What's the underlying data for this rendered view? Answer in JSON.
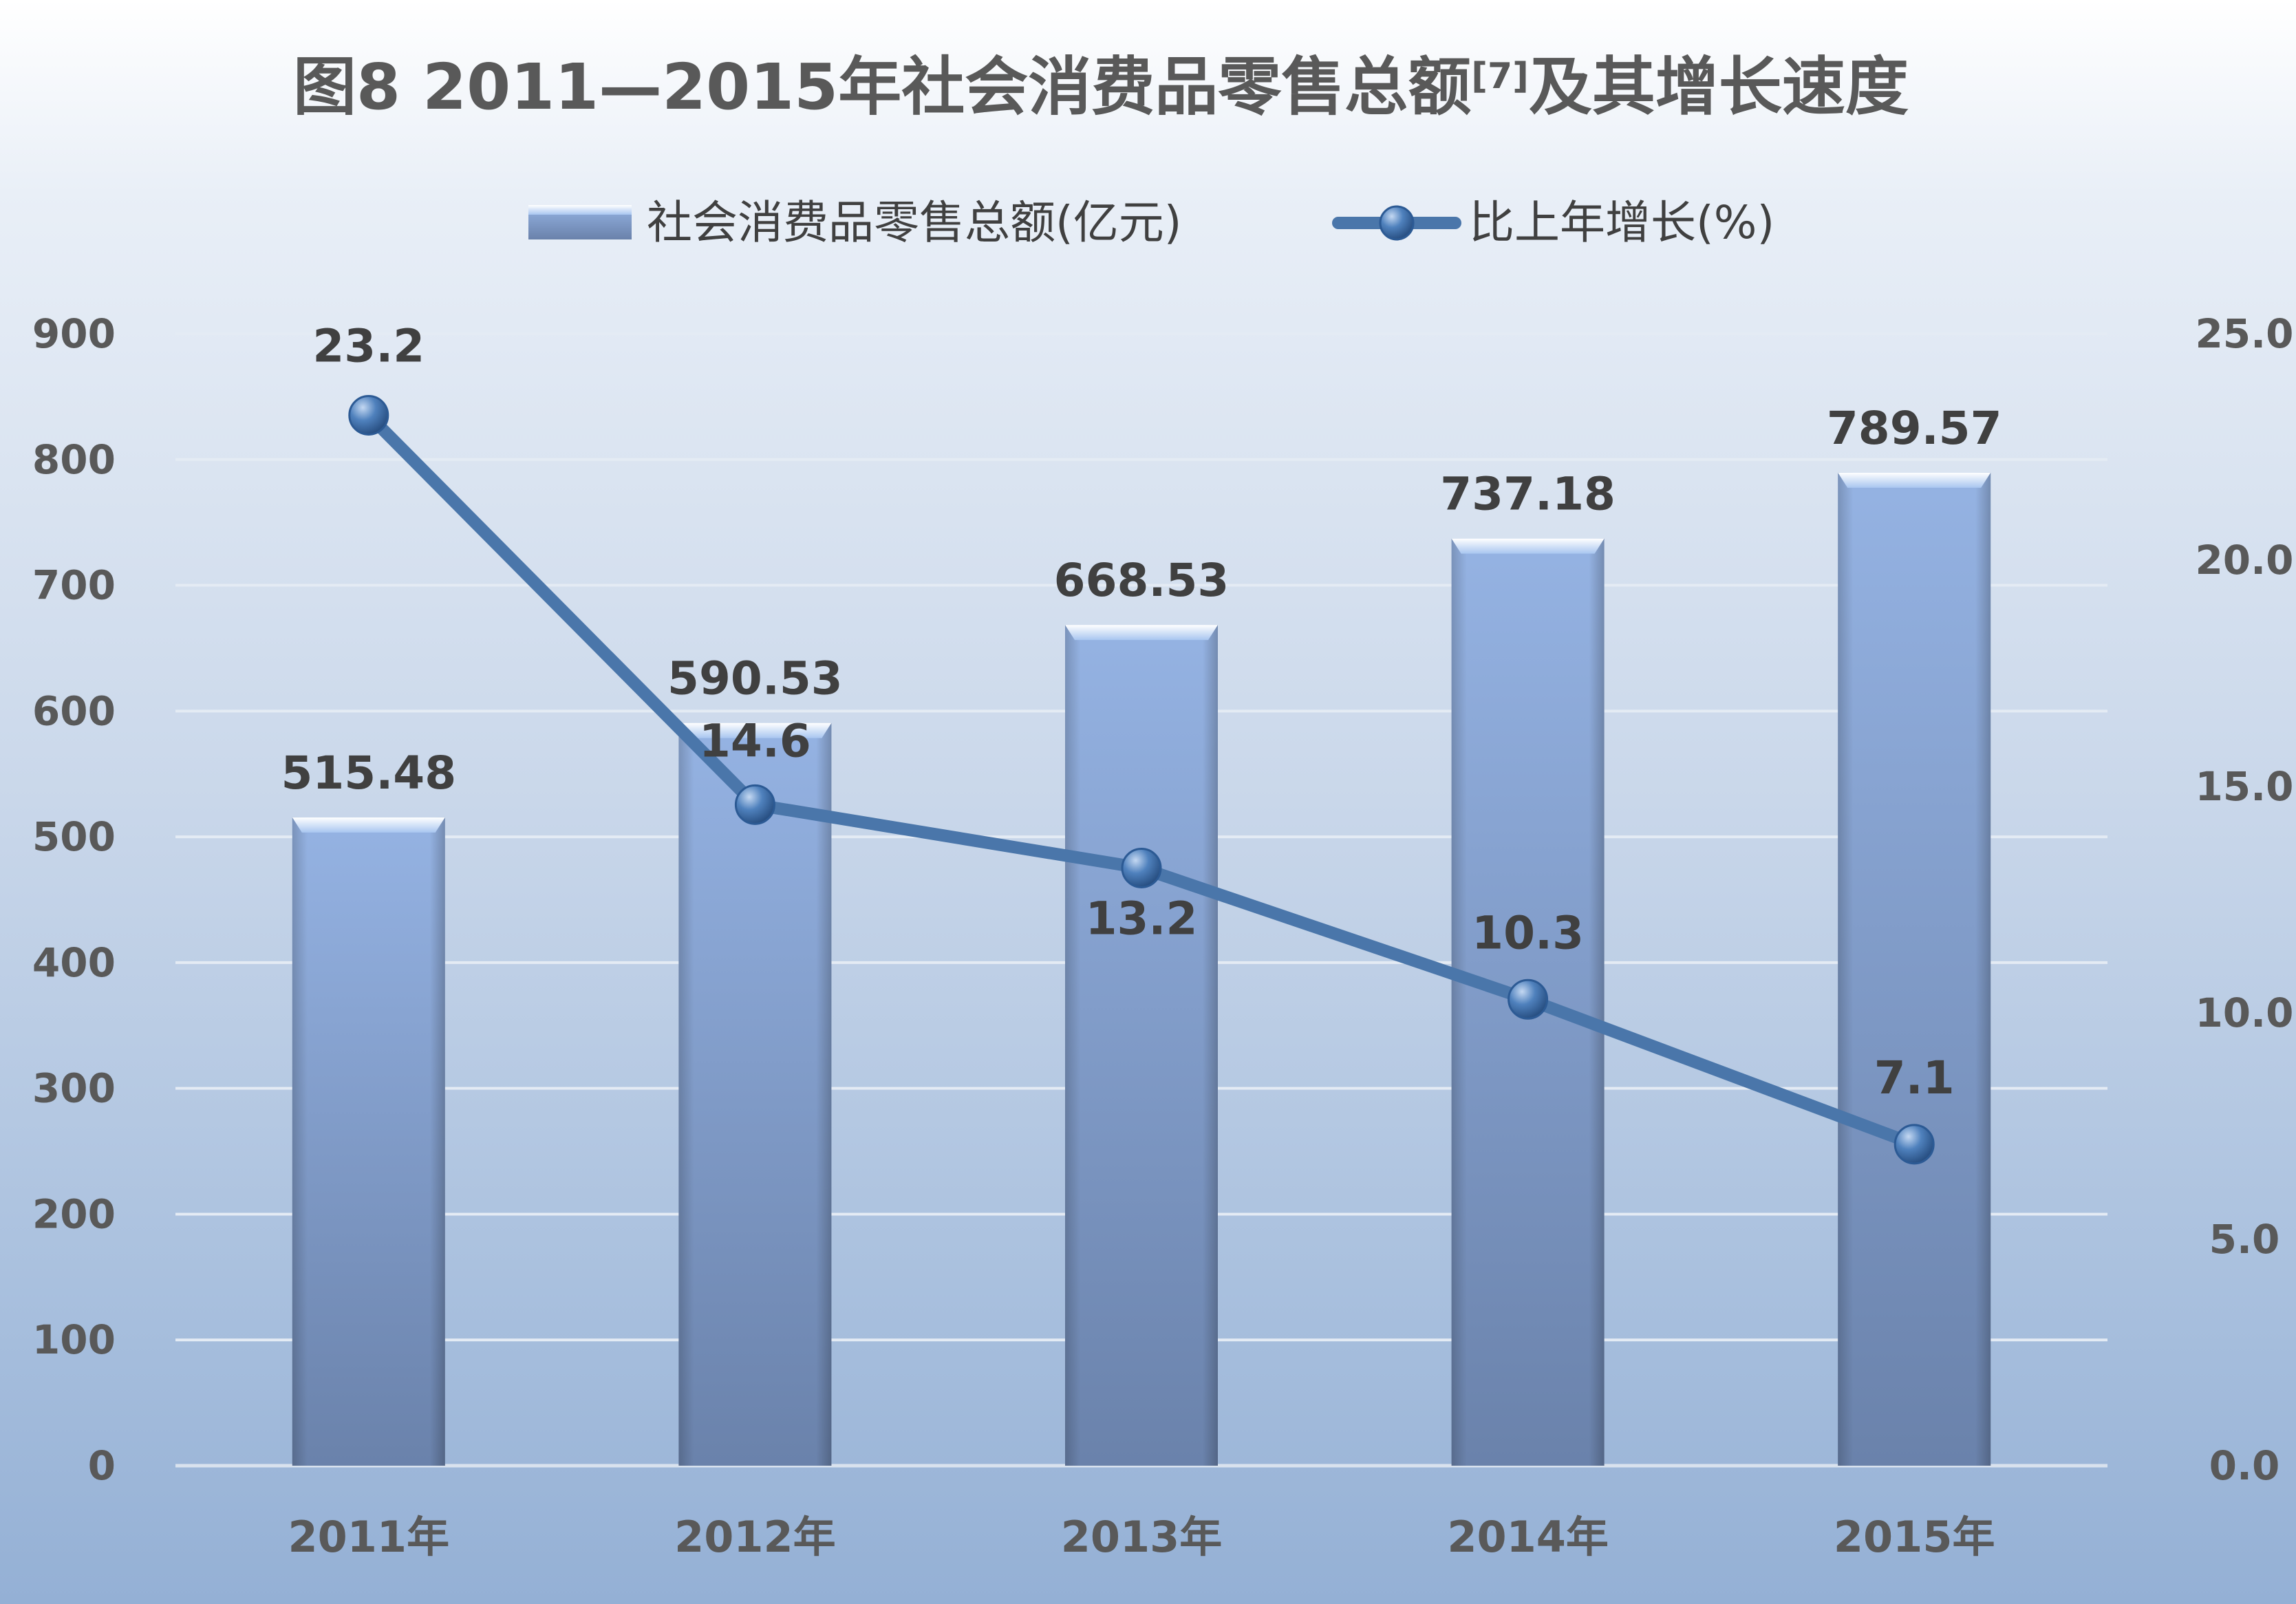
{
  "chart_data": {
    "type": "bar+line",
    "title": "图8   2011—2015年社会消费品零售总额",
    "title_sup": "[7]",
    "title_suffix": "及其增长速度",
    "categories": [
      "2011年",
      "2012年",
      "2013年",
      "2014年",
      "2015年"
    ],
    "series": [
      {
        "name": "社会消费品零售总额(亿元)",
        "type": "bar",
        "axis": "left",
        "values": [
          515.48,
          590.53,
          668.53,
          737.18,
          789.57
        ],
        "labels": [
          "515.48",
          "590.53",
          "668.53",
          "737.18",
          "789.57"
        ]
      },
      {
        "name": "比上年增长(%)",
        "type": "line",
        "axis": "right",
        "values": [
          23.2,
          14.6,
          13.2,
          10.3,
          7.1
        ],
        "labels": [
          "23.2",
          "14.6",
          "13.2",
          "10.3",
          "7.1"
        ]
      }
    ],
    "y_left": {
      "min": 0,
      "max": 900,
      "ticks": [
        0,
        100,
        200,
        300,
        400,
        500,
        600,
        700,
        800,
        900
      ],
      "tick_labels": [
        "0",
        "100",
        "200",
        "300",
        "400",
        "500",
        "600",
        "700",
        "800",
        "900"
      ]
    },
    "y_right": {
      "min": 0,
      "max": 25,
      "ticks": [
        0,
        5,
        10,
        15,
        20,
        25
      ],
      "tick_labels": [
        "0.0",
        "5.0",
        "10.0",
        "15.0",
        "20.0",
        "25.0"
      ]
    },
    "grid": true,
    "legend_position": "top",
    "colors": {
      "bar_top": "#95b3e3",
      "bar_bottom": "#6a82ab",
      "line": "#4a76aa",
      "marker": "#3e6ea8",
      "gridline": "#e4ebf4",
      "text": "#595959"
    }
  }
}
